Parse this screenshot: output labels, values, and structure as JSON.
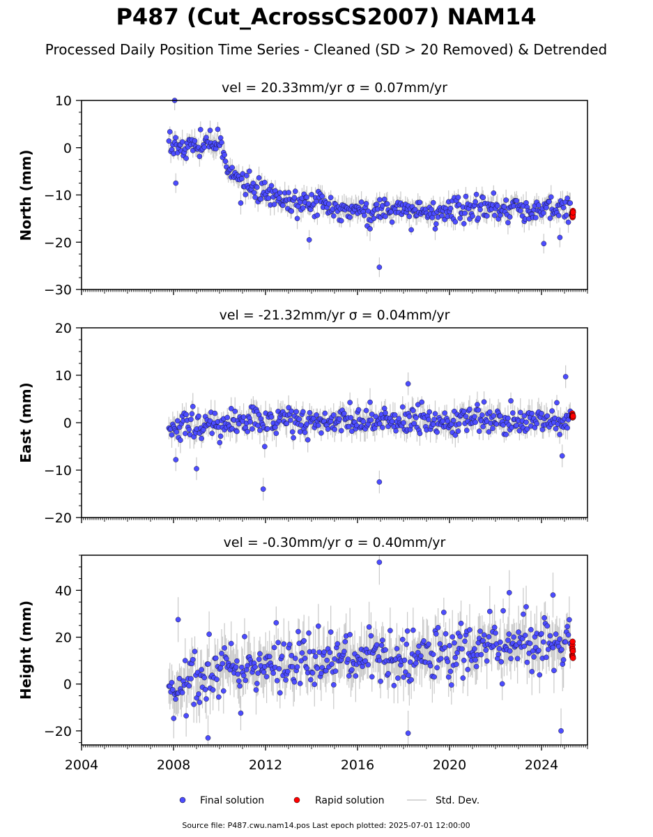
{
  "title": "P487 (Cut_AcrossCS2007) NAM14",
  "subtitle": "Processed Daily Position Time Series - Cleaned (SD > 20 Removed) & Detrended",
  "footer": "Source file: P487.cwu.nam14.pos  Last epoch plotted: 2025-07-01 12:00:00",
  "legend": {
    "final_label": "Final solution",
    "rapid_label": "Rapid solution",
    "std_label": "Std. Dev."
  },
  "colors": {
    "final": "#4c4cff",
    "rapid": "#ff0000",
    "std": "#c8c8c8",
    "edge": "#000000"
  },
  "chart_data": [
    {
      "type": "scatter",
      "title": "vel = 20.33mm/yr   σ = 0.07mm/yr",
      "ylabel": "North (mm)",
      "xlim": [
        2004,
        2026
      ],
      "ylim": [
        -30,
        10
      ],
      "yticks": [
        -30,
        -20,
        -10,
        0,
        10
      ],
      "series": [
        {
          "name": "Final solution",
          "x_start": 2007.8,
          "x_end": 2025.25,
          "profile": [
            [
              2007.8,
              0
            ],
            [
              2010.0,
              1
            ],
            [
              2010.2,
              -3
            ],
            [
              2010.8,
              -7
            ],
            [
              2012.0,
              -10
            ],
            [
              2014.0,
              -12
            ],
            [
              2016.0,
              -13
            ],
            [
              2018.0,
              -13.5
            ],
            [
              2020.0,
              -13
            ],
            [
              2022.0,
              -13
            ],
            [
              2025.25,
              -13.5
            ]
          ],
          "noise_sd": 1.3,
          "outliers": [
            [
              2008.05,
              10
            ],
            [
              2008.1,
              -7.5
            ],
            [
              2013.9,
              -19.5
            ],
            [
              2016.95,
              -25.3
            ],
            [
              2024.1,
              -20.3
            ],
            [
              2024.8,
              -19
            ]
          ]
        },
        {
          "name": "Rapid solution",
          "x_start": 2025.3,
          "x_end": 2025.5,
          "level": -14
        }
      ]
    },
    {
      "type": "scatter",
      "title": "vel = -21.32mm/yr   σ = 0.04mm/yr",
      "ylabel": "East (mm)",
      "xlim": [
        2004,
        2026
      ],
      "ylim": [
        -20,
        20
      ],
      "yticks": [
        -20,
        -10,
        0,
        10,
        20
      ],
      "series": [
        {
          "name": "Final solution",
          "x_start": 2007.8,
          "x_end": 2025.25,
          "profile": [
            [
              2007.8,
              -1
            ],
            [
              2012.0,
              0
            ],
            [
              2016.0,
              0.5
            ],
            [
              2020.0,
              0.5
            ],
            [
              2025.25,
              0.5
            ]
          ],
          "noise_sd": 1.5,
          "outliers": [
            [
              2011.9,
              -14
            ],
            [
              2016.95,
              -12.5
            ],
            [
              2018.2,
              8.2
            ],
            [
              2025.05,
              9.7
            ],
            [
              2024.9,
              -7
            ],
            [
              2009.0,
              -9.7
            ],
            [
              2008.1,
              -7.8
            ]
          ]
        },
        {
          "name": "Rapid solution",
          "x_start": 2025.3,
          "x_end": 2025.5,
          "level": 1.5
        }
      ]
    },
    {
      "type": "scatter",
      "title": "vel = -0.30mm/yr   σ = 0.40mm/yr",
      "ylabel": "Height (mm)",
      "xlim": [
        2004,
        2026
      ],
      "ylim": [
        -26,
        55
      ],
      "yticks": [
        -20,
        0,
        20,
        40
      ],
      "xticks": [
        2004,
        2008,
        2012,
        2016,
        2020,
        2024
      ],
      "series": [
        {
          "name": "Final solution",
          "x_start": 2007.8,
          "x_end": 2025.25,
          "profile": [
            [
              2007.8,
              -3
            ],
            [
              2009.0,
              2
            ],
            [
              2010.0,
              5
            ],
            [
              2012.0,
              8
            ],
            [
              2014.0,
              10
            ],
            [
              2016.0,
              12
            ],
            [
              2018.0,
              10
            ],
            [
              2020.0,
              14
            ],
            [
              2022.0,
              17
            ],
            [
              2024.0,
              18
            ],
            [
              2025.25,
              16
            ]
          ],
          "noise_sd": 6.0,
          "outliers": [
            [
              2016.95,
              52
            ],
            [
              2018.2,
              -21
            ],
            [
              2024.85,
              -20
            ],
            [
              2009.5,
              -23
            ],
            [
              2008.2,
              27.5
            ],
            [
              2022.6,
              39
            ],
            [
              2024.5,
              38
            ]
          ]
        },
        {
          "name": "Rapid solution",
          "x_start": 2025.3,
          "x_end": 2025.5,
          "level": 15
        }
      ]
    }
  ]
}
